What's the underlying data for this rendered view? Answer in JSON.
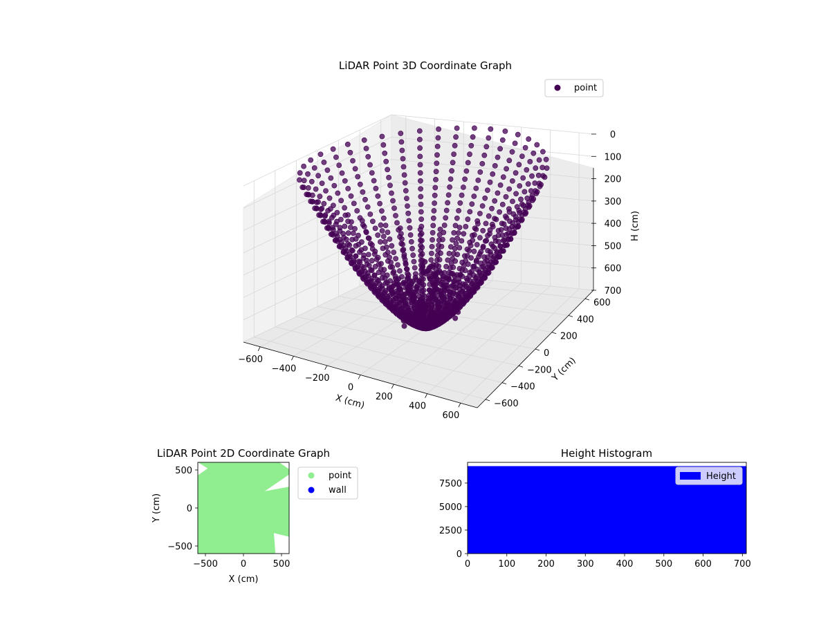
{
  "chart_data": [
    {
      "type": "scatter",
      "projection": "3d",
      "title": "LiDAR Point 3D Coordinate Graph",
      "xlabel": "X (cm)",
      "ylabel": "Y (cm)",
      "zlabel": "H (cm)",
      "xlim": [
        -700,
        700
      ],
      "ylim": [
        -700,
        700
      ],
      "zlim": [
        0,
        700
      ],
      "z_inverted": true,
      "x_ticks": [
        "−600",
        "−400",
        "−200",
        "0",
        "200",
        "400",
        "600"
      ],
      "y_ticks": [
        "−600",
        "−400",
        "−200",
        "0",
        "200",
        "400",
        "600"
      ],
      "z_ticks": [
        "0",
        "100",
        "200",
        "300",
        "400",
        "500",
        "600",
        "700"
      ],
      "grid": true,
      "legend_position": "top-right",
      "series": [
        {
          "name": "point",
          "color": "#440154",
          "description_ref": "ring pattern of LiDAR returns fanning out from sensor at origin",
          "rings": {
            "count": 40,
            "radius_range": [
              0,
              690
            ],
            "height_range": [
              0,
              700
            ]
          }
        }
      ]
    },
    {
      "type": "scatter",
      "title": "LiDAR Point 2D Coordinate Graph",
      "xlabel": "X (cm)",
      "ylabel": "Y (cm)",
      "xlim": [
        -600,
        600
      ],
      "ylim": [
        -600,
        600
      ],
      "x_ticks": [
        "−500",
        "0",
        "500"
      ],
      "y_ticks": [
        "−500",
        "0",
        "500"
      ],
      "legend_position": "outside-right",
      "series": [
        {
          "name": "point",
          "color": "#90ee90",
          "coverage": "dense fill of full extent"
        },
        {
          "name": "wall",
          "color": "#0000ff",
          "coverage": "none visible"
        }
      ]
    },
    {
      "type": "bar",
      "title": "Height Histogram",
      "xlabel": "",
      "ylabel": "",
      "xlim": [
        0,
        710
      ],
      "ylim": [
        0,
        9700
      ],
      "x_ticks": [
        "0",
        "100",
        "200",
        "300",
        "400",
        "500",
        "600",
        "700"
      ],
      "y_ticks": [
        "0",
        "2500",
        "5000",
        "7500"
      ],
      "legend_position": "top-right",
      "series": [
        {
          "name": "Height",
          "color": "#0000ff",
          "bin_range": [
            0,
            710
          ],
          "count": 9300
        }
      ]
    }
  ]
}
